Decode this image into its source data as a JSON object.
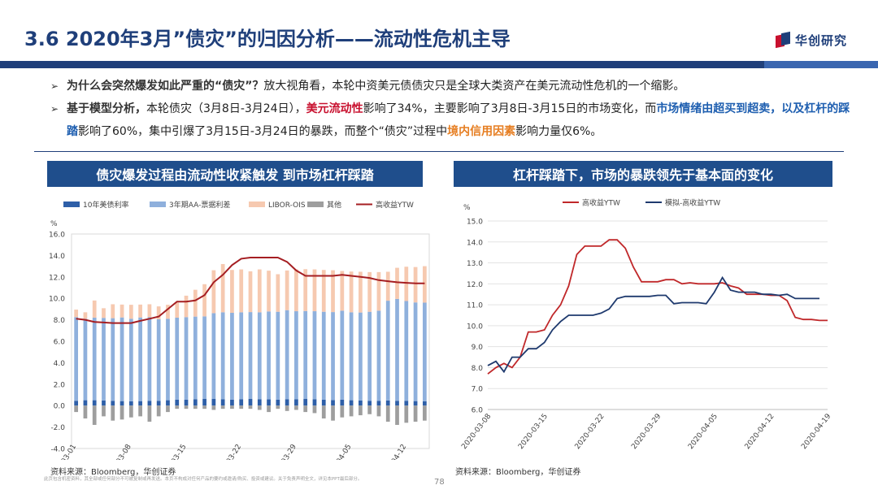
{
  "header": {
    "title": "3.6 2020年3月”债灾”的归因分析——流动性危机主导",
    "logo_text": "华创研究"
  },
  "bullets": {
    "b1_bold": "为什么会突然爆发如此严重的“债灾”？",
    "b1_text": "放大视角看，本轮中资美元债债灾只是全球大类资产在美元流动性危机的一个缩影。",
    "b2_bold": "基于模型分析，",
    "b2_t1": "本轮债灾（3月8日-3月24日），",
    "b2_red": "美元流动性",
    "b2_t2": "影响了34%，主要影响了3月8日-3月15日的市场变化，而",
    "b2_blue1": "市场情绪由超买到超卖，以及杠杆的踩踏",
    "b2_t3": "影响了60%，集中引爆了3月15日-3月24日的暴跌，而整个“债灾”过程中",
    "b2_orange": "境内信用因素",
    "b2_t4": "影响力量仅6%。"
  },
  "left_panel": {
    "title": "债灾爆发过程由流动性收紧触发 到市场杠杆踩踏",
    "source": "资料来源：Bloomberg，华创证券"
  },
  "right_panel": {
    "title": "杠杆踩踏下，市场的暴跌领先于基本面的变化",
    "source": "资料来源：Bloomberg，华创证券"
  },
  "footer": {
    "disclaimer": "此页包含机密资料，其全部或任何部分不可被复制或再发送。本页不构成对任何产品的要约或邀请/购买、投资或建议。关于免责声明全文，详见本PPT最后部分。",
    "page": "78"
  },
  "chart_data": [
    {
      "type": "bar",
      "stacked": true,
      "unit_label": "%",
      "ylim": [
        -4,
        16
      ],
      "yticks": [
        "-4.0",
        "-2.0",
        "0.0",
        "2.0",
        "4.0",
        "6.0",
        "8.0",
        "10.0",
        "12.0",
        "14.0",
        "16.0"
      ],
      "xtick_labels": [
        "2020-03-01",
        "2020-03-08",
        "2020-03-15",
        "2020-03-22",
        "2020-03-29",
        "2020-04-05",
        "2020-04-12"
      ],
      "xtick_indices": [
        0,
        6,
        12,
        18,
        24,
        30,
        36
      ],
      "colors": {
        "ust10": "#2e5fa8",
        "aa_spread": "#8fb0dc",
        "libor_ois": "#f6c9b0",
        "other": "#9e9e9e",
        "ytw": "#a51e22"
      },
      "legend": [
        "10年美债利率",
        "3年期AA-票据利差",
        "LIBOR-OIS",
        "其他",
        "高收益YTW"
      ],
      "categories_count": 39,
      "series": [
        {
          "name": "10年美债利率",
          "values": [
            0.45,
            0.5,
            0.5,
            0.48,
            0.45,
            0.42,
            0.4,
            0.42,
            0.45,
            0.45,
            0.5,
            0.55,
            0.55,
            0.6,
            0.62,
            0.62,
            0.6,
            0.55,
            0.6,
            0.62,
            0.6,
            0.58,
            0.55,
            0.6,
            0.6,
            0.62,
            0.6,
            0.55,
            0.52,
            0.55,
            0.5,
            0.48,
            0.45,
            0.45,
            0.48,
            0.45,
            0.45,
            0.42,
            0.4
          ]
        },
        {
          "name": "3年期AA-票据利差",
          "values": [
            7.8,
            7.6,
            7.7,
            7.7,
            7.7,
            7.8,
            7.7,
            7.8,
            7.8,
            7.6,
            7.6,
            7.65,
            7.7,
            7.7,
            7.7,
            8.0,
            8.1,
            8.1,
            8.1,
            8.1,
            8.1,
            8.2,
            8.2,
            8.3,
            8.2,
            8.2,
            8.2,
            8.2,
            8.2,
            8.3,
            8.2,
            8.2,
            8.3,
            8.4,
            9.3,
            9.5,
            9.3,
            9.2,
            9.2
          ]
        },
        {
          "name": "LIBOR-OIS",
          "values": [
            0.7,
            0.6,
            1.6,
            0.9,
            1.3,
            1.2,
            1.3,
            1.2,
            1.2,
            1.2,
            1.3,
            1.4,
            2.0,
            2.5,
            3.0,
            4.0,
            4.5,
            4.0,
            4.0,
            3.8,
            4.0,
            3.8,
            3.5,
            3.7,
            3.9,
            3.9,
            3.9,
            3.9,
            3.9,
            3.7,
            3.8,
            3.8,
            3.7,
            3.6,
            2.7,
            2.9,
            3.2,
            3.3,
            3.4
          ]
        },
        {
          "name": "其他",
          "values": [
            -0.6,
            -1.2,
            -1.8,
            -1.0,
            -1.4,
            -1.3,
            -1.1,
            -1.0,
            -1.5,
            -1.0,
            -0.6,
            -0.3,
            -0.3,
            -0.3,
            -0.3,
            -0.4,
            -0.3,
            -0.3,
            -0.3,
            -0.3,
            -0.4,
            -0.6,
            -0.3,
            -0.5,
            -0.4,
            -0.6,
            -0.7,
            -1.2,
            -1.4,
            -1.1,
            -1.0,
            -0.9,
            -0.8,
            -1.0,
            -1.5,
            -1.8,
            -1.6,
            -1.5,
            -1.4
          ]
        },
        {
          "name": "高收益YTW",
          "type": "line",
          "values": [
            8.1,
            8.0,
            7.8,
            7.75,
            7.7,
            7.7,
            7.7,
            7.9,
            8.1,
            8.3,
            9.0,
            9.7,
            9.7,
            9.8,
            10.3,
            11.5,
            12.2,
            13.1,
            13.7,
            13.8,
            13.8,
            13.8,
            13.8,
            13.4,
            12.6,
            12.1,
            12.1,
            12.1,
            12.1,
            12.2,
            12.1,
            12.0,
            11.9,
            11.7,
            11.6,
            11.5,
            11.45,
            11.4,
            11.4
          ]
        }
      ]
    },
    {
      "type": "line",
      "unit_label": "%",
      "ylim": [
        6,
        15
      ],
      "yticks": [
        "6.0",
        "7.0",
        "8.0",
        "9.0",
        "10.0",
        "11.0",
        "12.0",
        "13.0",
        "14.0",
        "15.0"
      ],
      "xtick_labels": [
        "2020-03-08",
        "2020-03-15",
        "2020-03-22",
        "2020-03-29",
        "2020-04-05",
        "2020-04-12",
        "2020-04-19"
      ],
      "xtick_indices": [
        0,
        7,
        14,
        21,
        28,
        35,
        42
      ],
      "legend_position": "top",
      "series": [
        {
          "name": "高收益YTW",
          "color": "#c0282a",
          "values": [
            7.7,
            8.0,
            8.2,
            8.0,
            8.5,
            9.7,
            9.7,
            9.8,
            10.5,
            11.0,
            11.9,
            13.4,
            13.8,
            13.8,
            13.8,
            14.1,
            14.1,
            13.7,
            12.8,
            12.1,
            12.1,
            12.1,
            12.2,
            12.2,
            12.0,
            12.05,
            12.0,
            12.0,
            12.0,
            12.05,
            11.9,
            11.8,
            11.5,
            11.5,
            11.5,
            11.45,
            11.45,
            11.2,
            10.4,
            10.3,
            10.3,
            10.25,
            10.25
          ]
        },
        {
          "name": "模拟-高收益YTW",
          "color": "#1f3a6e",
          "values": [
            8.1,
            8.3,
            7.8,
            8.5,
            8.5,
            8.9,
            8.9,
            9.2,
            9.8,
            10.2,
            10.5,
            10.5,
            10.5,
            10.5,
            10.6,
            10.8,
            11.3,
            11.4,
            11.4,
            11.4,
            11.4,
            11.45,
            11.45,
            11.05,
            11.1,
            11.1,
            11.1,
            11.05,
            11.6,
            12.3,
            11.7,
            11.6,
            11.6,
            11.6,
            11.5,
            11.5,
            11.45,
            11.5,
            11.3,
            11.3,
            11.3,
            11.3
          ]
        }
      ]
    }
  ]
}
